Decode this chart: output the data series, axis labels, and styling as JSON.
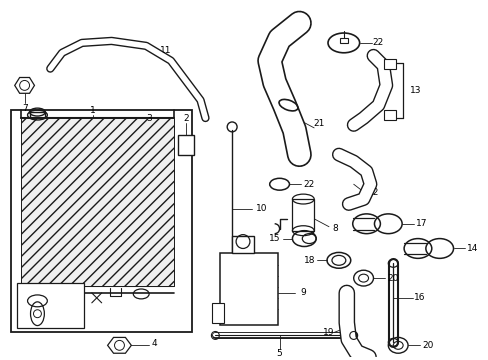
{
  "bg_color": "#ffffff",
  "line_color": "#1a1a1a",
  "fig_width": 4.89,
  "fig_height": 3.6,
  "dpi": 100,
  "label_fontsize": 6.5,
  "lw": 1.0
}
